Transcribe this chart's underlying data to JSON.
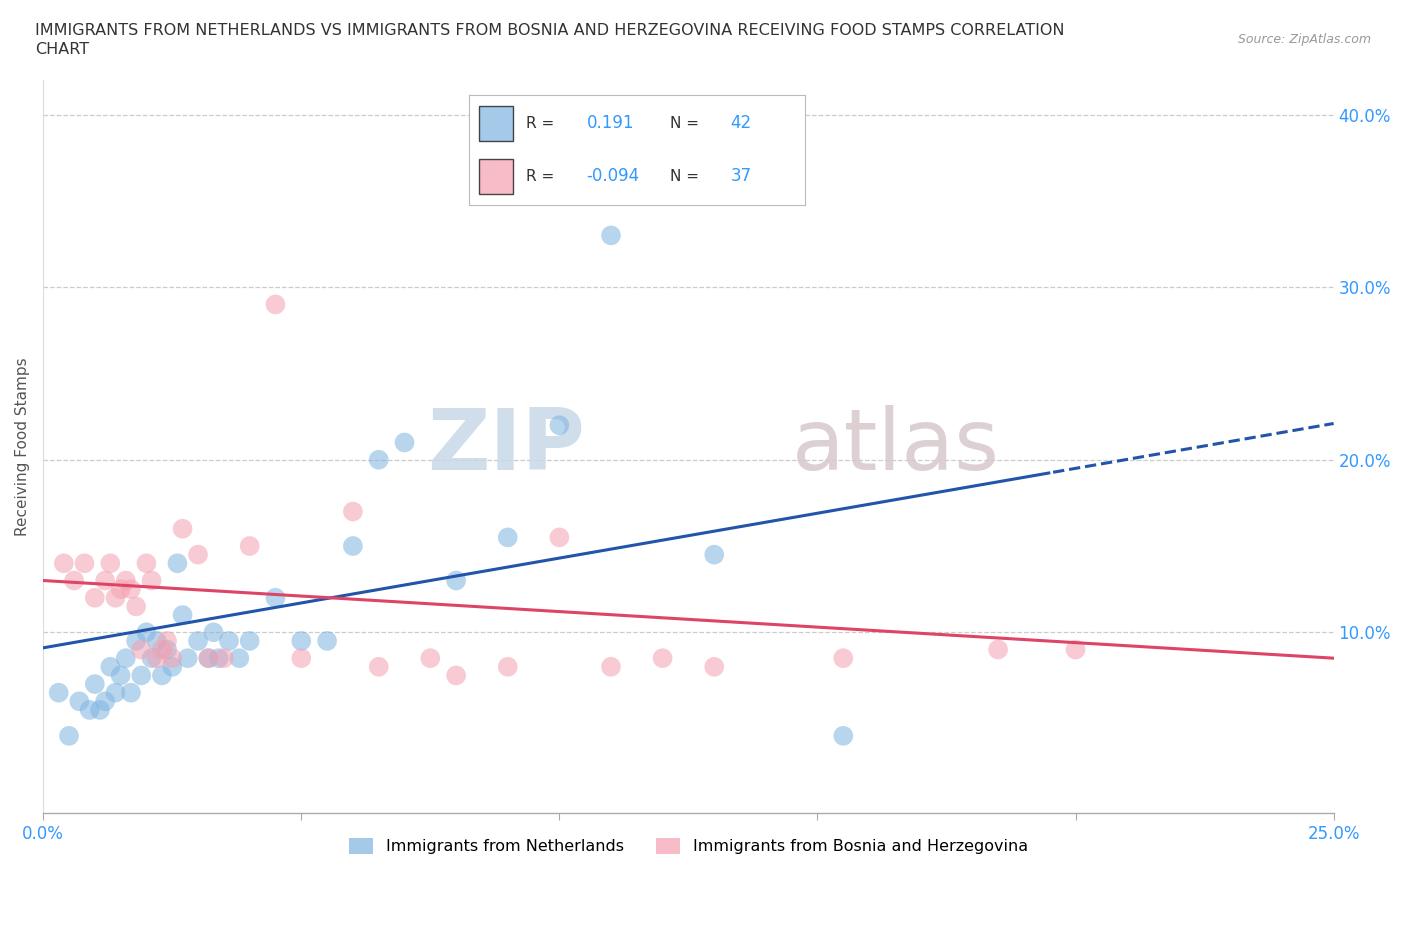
{
  "title_line1": "IMMIGRANTS FROM NETHERLANDS VS IMMIGRANTS FROM BOSNIA AND HERZEGOVINA RECEIVING FOOD STAMPS CORRELATION",
  "title_line2": "CHART",
  "source": "Source: ZipAtlas.com",
  "ylabel": "Receiving Food Stamps",
  "xlim": [
    0.0,
    0.25
  ],
  "ylim": [
    -0.005,
    0.42
  ],
  "xticks": [
    0.0,
    0.05,
    0.1,
    0.15,
    0.2,
    0.25
  ],
  "xticklabels": [
    "0.0%",
    "",
    "",
    "",
    "",
    "25.0%"
  ],
  "yticks": [
    0.1,
    0.2,
    0.3,
    0.4
  ],
  "yticklabels": [
    "10.0%",
    "20.0%",
    "30.0%",
    "40.0%"
  ],
  "netherlands_color": "#7fb3e0",
  "bosnia_color": "#f4a0b0",
  "netherlands_R": "0.191",
  "netherlands_N": "42",
  "bosnia_R": "-0.094",
  "bosnia_N": "37",
  "legend_label1": "Immigrants from Netherlands",
  "legend_label2": "Immigrants from Bosnia and Herzegovina",
  "watermark_zip": "ZIP",
  "watermark_atlas": "atlas",
  "background_color": "#ffffff",
  "grid_color": "#cccccc",
  "nl_trend_color": "#2255aa",
  "bos_trend_color": "#dd4466",
  "title_color": "#333333",
  "axis_label_color": "#555555",
  "tick_color": "#3399FF",
  "netherlands_scatter_x": [
    0.003,
    0.005,
    0.007,
    0.009,
    0.01,
    0.011,
    0.012,
    0.013,
    0.014,
    0.015,
    0.016,
    0.017,
    0.018,
    0.019,
    0.02,
    0.021,
    0.022,
    0.023,
    0.024,
    0.025,
    0.026,
    0.027,
    0.028,
    0.03,
    0.032,
    0.033,
    0.034,
    0.036,
    0.038,
    0.04,
    0.045,
    0.05,
    0.055,
    0.06,
    0.065,
    0.07,
    0.08,
    0.09,
    0.1,
    0.11,
    0.13,
    0.155
  ],
  "netherlands_scatter_y": [
    0.065,
    0.04,
    0.06,
    0.055,
    0.07,
    0.055,
    0.06,
    0.08,
    0.065,
    0.075,
    0.085,
    0.065,
    0.095,
    0.075,
    0.1,
    0.085,
    0.095,
    0.075,
    0.09,
    0.08,
    0.14,
    0.11,
    0.085,
    0.095,
    0.085,
    0.1,
    0.085,
    0.095,
    0.085,
    0.095,
    0.12,
    0.095,
    0.095,
    0.15,
    0.2,
    0.21,
    0.13,
    0.155,
    0.22,
    0.33,
    0.145,
    0.04
  ],
  "bosnia_scatter_x": [
    0.004,
    0.006,
    0.008,
    0.01,
    0.012,
    0.013,
    0.014,
    0.015,
    0.016,
    0.017,
    0.018,
    0.019,
    0.02,
    0.021,
    0.022,
    0.023,
    0.024,
    0.025,
    0.027,
    0.03,
    0.032,
    0.035,
    0.04,
    0.045,
    0.05,
    0.06,
    0.065,
    0.075,
    0.08,
    0.09,
    0.1,
    0.11,
    0.12,
    0.13,
    0.155,
    0.185,
    0.2
  ],
  "bosnia_scatter_y": [
    0.14,
    0.13,
    0.14,
    0.12,
    0.13,
    0.14,
    0.12,
    0.125,
    0.13,
    0.125,
    0.115,
    0.09,
    0.14,
    0.13,
    0.085,
    0.09,
    0.095,
    0.085,
    0.16,
    0.145,
    0.085,
    0.085,
    0.15,
    0.29,
    0.085,
    0.17,
    0.08,
    0.085,
    0.075,
    0.08,
    0.155,
    0.08,
    0.085,
    0.08,
    0.085,
    0.09,
    0.09
  ],
  "nl_trend_intercept": 0.091,
  "nl_trend_slope": 0.52,
  "bos_trend_intercept": 0.13,
  "bos_trend_slope": -0.18
}
